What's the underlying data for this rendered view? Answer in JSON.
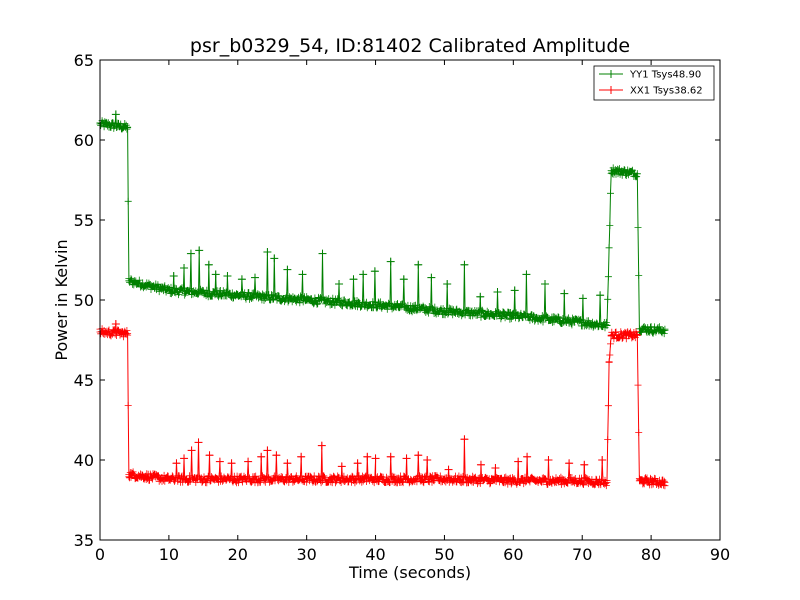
{
  "chart_data": {
    "type": "line",
    "title": "psr_b0329_54, ID:81402 Calibrated Amplitude",
    "xlabel": "Time (seconds)",
    "ylabel": "Power in Kelvin",
    "xlim": [
      0,
      90
    ],
    "ylim": [
      35,
      65
    ],
    "xticks": [
      "0",
      "10",
      "20",
      "30",
      "40",
      "50",
      "60",
      "70",
      "80",
      "90"
    ],
    "yticks": [
      "35",
      "40",
      "45",
      "50",
      "55",
      "60",
      "65"
    ],
    "grid": false,
    "legend_position": "top-right",
    "series": [
      {
        "name": "YY1 Tsys48.90",
        "color": "#008000",
        "points": [
          [
            0.0,
            61.0
          ],
          [
            4.0,
            60.8
          ],
          [
            4.2,
            51.2
          ],
          [
            10,
            50.6
          ],
          [
            20,
            50.3
          ],
          [
            30,
            50.0
          ],
          [
            40,
            49.7
          ],
          [
            50,
            49.3
          ],
          [
            60,
            49.0
          ],
          [
            70,
            48.6
          ],
          [
            73.6,
            48.4
          ],
          [
            74.2,
            58.1
          ],
          [
            78.0,
            57.9
          ],
          [
            78.3,
            48.2
          ],
          [
            82.0,
            48.1
          ]
        ],
        "spikes": [
          [
            2.3,
            61.6
          ],
          [
            10.7,
            51.5
          ],
          [
            12.2,
            52.0
          ],
          [
            13.2,
            52.9
          ],
          [
            14.4,
            53.1
          ],
          [
            15.8,
            52.2
          ],
          [
            16.8,
            51.6
          ],
          [
            18.5,
            51.5
          ],
          [
            20.6,
            51.3
          ],
          [
            22.5,
            51.4
          ],
          [
            24.3,
            53.0
          ],
          [
            25.3,
            52.6
          ],
          [
            27.2,
            51.9
          ],
          [
            29.4,
            51.6
          ],
          [
            32.3,
            52.9
          ],
          [
            34.7,
            51.0
          ],
          [
            36.8,
            51.3
          ],
          [
            38.2,
            51.6
          ],
          [
            39.9,
            51.8
          ],
          [
            42.2,
            52.4
          ],
          [
            44.1,
            51.3
          ],
          [
            46.2,
            52.2
          ],
          [
            48.1,
            51.4
          ],
          [
            50.4,
            51.0
          ],
          [
            52.9,
            52.2
          ],
          [
            55.2,
            50.2
          ],
          [
            57.7,
            50.5
          ],
          [
            60.2,
            50.6
          ],
          [
            61.9,
            51.6
          ],
          [
            64.6,
            51.0
          ],
          [
            67.4,
            50.4
          ],
          [
            70.1,
            50.1
          ],
          [
            72.6,
            50.3
          ]
        ]
      },
      {
        "name": "XX1 Tsys38.62",
        "color": "#ff0000",
        "points": [
          [
            0.0,
            48.0
          ],
          [
            4.0,
            47.9
          ],
          [
            4.2,
            39.1
          ],
          [
            10,
            38.8
          ],
          [
            20,
            38.8
          ],
          [
            30,
            38.8
          ],
          [
            40,
            38.8
          ],
          [
            50,
            38.8
          ],
          [
            60,
            38.7
          ],
          [
            70,
            38.7
          ],
          [
            73.6,
            38.6
          ],
          [
            73.9,
            46.1
          ],
          [
            74.2,
            47.8
          ],
          [
            78.0,
            47.8
          ],
          [
            78.3,
            38.7
          ],
          [
            82.0,
            38.6
          ]
        ],
        "spikes": [
          [
            2.3,
            48.5
          ],
          [
            11.1,
            39.8
          ],
          [
            12.2,
            40.1
          ],
          [
            13.3,
            40.6
          ],
          [
            14.3,
            41.1
          ],
          [
            15.9,
            40.3
          ],
          [
            17.4,
            39.9
          ],
          [
            19.1,
            39.8
          ],
          [
            21.5,
            39.9
          ],
          [
            23.4,
            40.2
          ],
          [
            24.3,
            40.6
          ],
          [
            25.6,
            40.3
          ],
          [
            27.2,
            39.8
          ],
          [
            29.2,
            40.2
          ],
          [
            32.2,
            40.9
          ],
          [
            35.1,
            39.6
          ],
          [
            37.4,
            39.8
          ],
          [
            38.8,
            40.2
          ],
          [
            40.0,
            40.1
          ],
          [
            42.2,
            40.2
          ],
          [
            44.5,
            40.1
          ],
          [
            46.2,
            40.3
          ],
          [
            47.5,
            40.0
          ],
          [
            50.6,
            39.4
          ],
          [
            52.9,
            41.3
          ],
          [
            55.3,
            39.7
          ],
          [
            57.4,
            39.5
          ],
          [
            60.7,
            39.9
          ],
          [
            62.0,
            40.2
          ],
          [
            65.1,
            40.0
          ],
          [
            68.1,
            39.8
          ],
          [
            70.3,
            39.7
          ],
          [
            72.9,
            40.0
          ]
        ]
      }
    ]
  }
}
